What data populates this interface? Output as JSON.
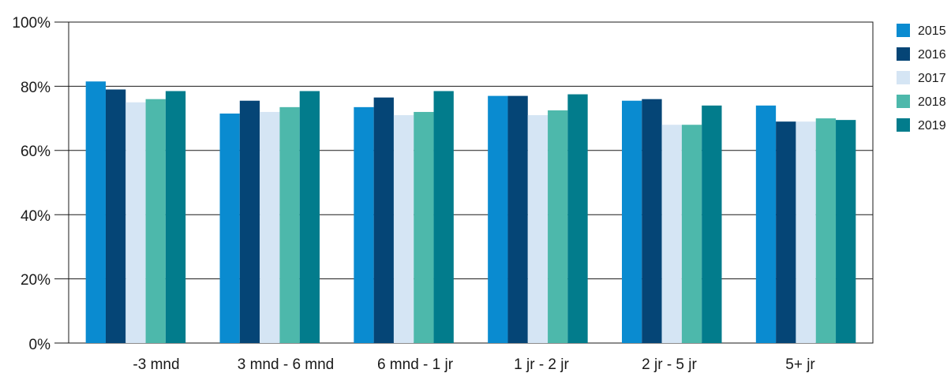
{
  "chart_data": {
    "type": "bar",
    "categories": [
      "-3 mnd",
      "3 mnd - 6 mnd",
      "6 mnd - 1 jr",
      "1 jr - 2 jr",
      "2 jr - 5 jr",
      "5+ jr"
    ],
    "series": [
      {
        "name": "2015",
        "color": "#0a8bd0",
        "values": [
          81.5,
          71.5,
          73.5,
          77,
          75.5,
          74
        ]
      },
      {
        "name": "2016",
        "color": "#054576",
        "values": [
          79,
          75.5,
          76.5,
          77,
          76,
          69
        ]
      },
      {
        "name": "2017",
        "color": "#d5e5f4",
        "values": [
          75,
          72,
          71,
          71,
          68,
          69
        ]
      },
      {
        "name": "2018",
        "color": "#4db8ab",
        "values": [
          76,
          73.5,
          72,
          72.5,
          68,
          70
        ]
      },
      {
        "name": "2019",
        "color": "#027c8c",
        "values": [
          78.5,
          78.5,
          78.5,
          77.5,
          74,
          69.5
        ]
      }
    ],
    "yticks": [
      "0%",
      "20%",
      "40%",
      "60%",
      "80%",
      "100%"
    ],
    "ylim": [
      0,
      100
    ],
    "grid": true,
    "legend_position": "right"
  }
}
